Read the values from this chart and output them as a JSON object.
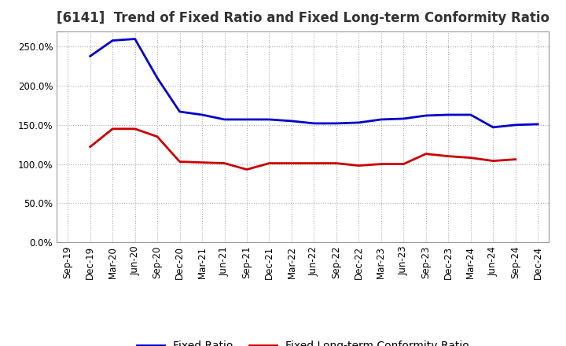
{
  "title": "[6141]  Trend of Fixed Ratio and Fixed Long-term Conformity Ratio",
  "x_labels": [
    "Sep-19",
    "Dec-19",
    "Mar-20",
    "Jun-20",
    "Sep-20",
    "Dec-20",
    "Mar-21",
    "Jun-21",
    "Sep-21",
    "Dec-21",
    "Mar-22",
    "Jun-22",
    "Sep-22",
    "Dec-22",
    "Mar-23",
    "Jun-23",
    "Sep-23",
    "Dec-23",
    "Mar-24",
    "Jun-24",
    "Sep-24",
    "Dec-24"
  ],
  "fixed_ratio": [
    null,
    238,
    258,
    260,
    210,
    167,
    163,
    157,
    157,
    157,
    155,
    152,
    152,
    153,
    157,
    158,
    162,
    163,
    163,
    147,
    150,
    151
  ],
  "fixed_lt_ratio": [
    null,
    122,
    145,
    145,
    135,
    103,
    102,
    101,
    93,
    101,
    101,
    101,
    101,
    98,
    100,
    100,
    113,
    110,
    108,
    104,
    106,
    null
  ],
  "fixed_ratio_color": "#0000cc",
  "fixed_lt_ratio_color": "#cc0000",
  "ylim": [
    0,
    270
  ],
  "yticks": [
    0,
    50,
    100,
    150,
    200,
    250
  ],
  "background_color": "#ffffff",
  "plot_bg_color": "#ffffff",
  "grid_color": "#aaaaaa",
  "legend_fixed_ratio": "Fixed Ratio",
  "legend_fixed_lt_ratio": "Fixed Long-term Conformity Ratio",
  "title_fontsize": 12,
  "tick_fontsize": 8.5,
  "legend_fontsize": 10,
  "line_width": 2.0
}
